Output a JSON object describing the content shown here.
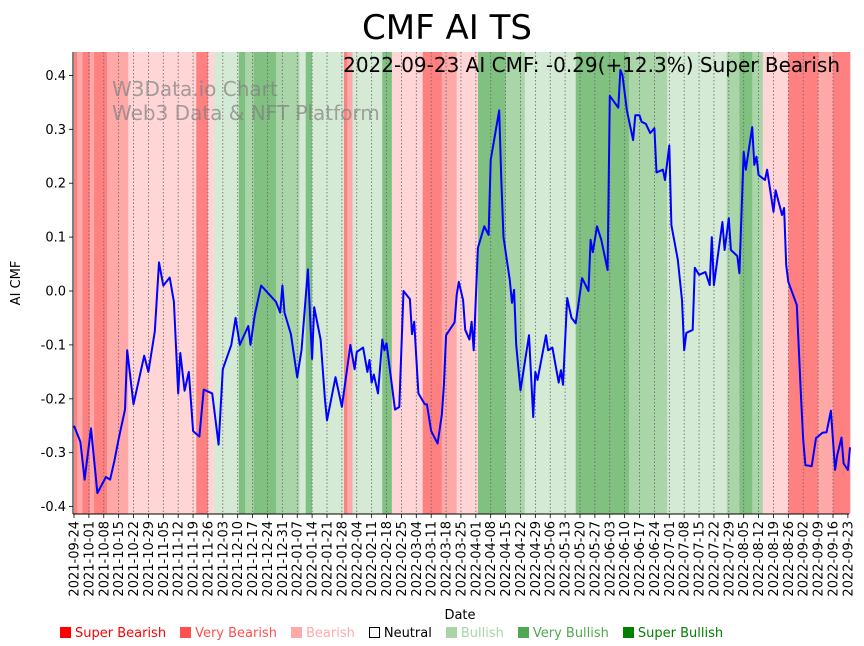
{
  "chart_data": {
    "type": "line",
    "title": "CMF AI TS",
    "annotation": "2022-09-23 AI CMF: -0.29(+12.3%) Super Bearish",
    "watermark": [
      "W3Data.io Chart",
      "Web3 Data & NFT Platform"
    ],
    "xlabel": "Date",
    "ylabel": "AI CMF",
    "x_start_date": "2021-09-24",
    "x_unit": "days since 2021-09-24",
    "xlim": [
      0,
      365
    ],
    "ylim": [
      -0.41,
      0.445
    ],
    "yticks": [
      "-0.4",
      "-0.3",
      "-0.2",
      "-0.1",
      "0.0",
      "0.1",
      "0.2",
      "0.3",
      "0.4"
    ],
    "ytick_values": [
      -0.4,
      -0.3,
      -0.2,
      -0.1,
      0.0,
      0.1,
      0.2,
      0.3,
      0.4
    ],
    "xticks": [
      "2021-09-24",
      "2021-10-01",
      "2021-10-08",
      "2021-10-15",
      "2021-10-22",
      "2021-10-29",
      "2021-11-05",
      "2021-11-12",
      "2021-11-19",
      "2021-11-26",
      "2021-12-03",
      "2021-12-10",
      "2021-12-17",
      "2021-12-24",
      "2021-12-31",
      "2022-01-07",
      "2022-01-14",
      "2022-01-21",
      "2022-01-28",
      "2022-02-04",
      "2022-02-11",
      "2022-02-18",
      "2022-02-25",
      "2022-03-04",
      "2022-03-11",
      "2022-03-18",
      "2022-03-25",
      "2022-04-01",
      "2022-04-08",
      "2022-04-15",
      "2022-04-22",
      "2022-04-29",
      "2022-05-06",
      "2022-05-13",
      "2022-05-20",
      "2022-05-27",
      "2022-06-03",
      "2022-06-10",
      "2022-06-17",
      "2022-06-24",
      "2022-07-01",
      "2022-07-08",
      "2022-07-15",
      "2022-07-22",
      "2022-07-29",
      "2022-08-05",
      "2022-08-12",
      "2022-08-19",
      "2022-08-26",
      "2022-09-02",
      "2022-09-09",
      "2022-09-16",
      "2022-09-23"
    ],
    "grid": "vertical dotted at x ticks",
    "series": [
      {
        "name": "AI CMF",
        "color": "#0000ff",
        "points": [
          [
            0,
            -0.25
          ],
          [
            3,
            -0.28
          ],
          [
            5,
            -0.35
          ],
          [
            8,
            -0.255
          ],
          [
            11,
            -0.375
          ],
          [
            15,
            -0.345
          ],
          [
            17,
            -0.35
          ],
          [
            19,
            -0.315
          ],
          [
            21,
            -0.275
          ],
          [
            24,
            -0.22
          ],
          [
            25,
            -0.11
          ],
          [
            28,
            -0.21
          ],
          [
            33,
            -0.12
          ],
          [
            35,
            -0.15
          ],
          [
            38,
            -0.075
          ],
          [
            40,
            0.053
          ],
          [
            42,
            0.01
          ],
          [
            45,
            0.025
          ],
          [
            47,
            -0.02
          ],
          [
            49,
            -0.19
          ],
          [
            50,
            -0.115
          ],
          [
            52,
            -0.185
          ],
          [
            54,
            -0.15
          ],
          [
            56,
            -0.26
          ],
          [
            59,
            -0.27
          ],
          [
            61,
            -0.183
          ],
          [
            65,
            -0.19
          ],
          [
            68,
            -0.285
          ],
          [
            70,
            -0.145
          ],
          [
            74,
            -0.1
          ],
          [
            76,
            -0.05
          ],
          [
            78,
            -0.1
          ],
          [
            82,
            -0.065
          ],
          [
            83,
            -0.1
          ],
          [
            85,
            -0.045
          ],
          [
            88,
            0.01
          ],
          [
            95,
            -0.02
          ],
          [
            97,
            -0.04
          ],
          [
            98,
            0.01
          ],
          [
            99,
            -0.04
          ],
          [
            102,
            -0.08
          ],
          [
            105,
            -0.16
          ],
          [
            107,
            -0.11
          ],
          [
            110,
            0.04
          ],
          [
            112,
            -0.126
          ],
          [
            113,
            -0.03
          ],
          [
            116,
            -0.09
          ],
          [
            118,
            -0.2
          ],
          [
            119,
            -0.24
          ],
          [
            123,
            -0.16
          ],
          [
            126,
            -0.215
          ],
          [
            130,
            -0.1
          ],
          [
            132,
            -0.145
          ],
          [
            133,
            -0.113
          ],
          [
            136,
            -0.105
          ],
          [
            138,
            -0.15
          ],
          [
            139,
            -0.128
          ],
          [
            140,
            -0.17
          ],
          [
            141,
            -0.155
          ],
          [
            143,
            -0.19
          ],
          [
            145,
            -0.09
          ],
          [
            146,
            -0.11
          ],
          [
            147,
            -0.097
          ],
          [
            151,
            -0.22
          ],
          [
            153,
            -0.215
          ],
          [
            155,
            0.0
          ],
          [
            158,
            -0.015
          ],
          [
            159,
            -0.08
          ],
          [
            160,
            -0.057
          ],
          [
            162,
            -0.19
          ],
          [
            165,
            -0.21
          ],
          [
            166,
            -0.21
          ],
          [
            168,
            -0.26
          ],
          [
            171,
            -0.283
          ],
          [
            173,
            -0.23
          ],
          [
            174,
            -0.175
          ],
          [
            175,
            -0.082
          ],
          [
            179,
            -0.058
          ],
          [
            180,
            -0.007
          ],
          [
            181,
            0.017
          ],
          [
            183,
            -0.017
          ],
          [
            184,
            -0.072
          ],
          [
            186,
            -0.09
          ],
          [
            187,
            -0.057
          ],
          [
            188,
            -0.11
          ],
          [
            190,
            0.08
          ],
          [
            193,
            0.12
          ],
          [
            195,
            0.104
          ],
          [
            196,
            0.243
          ],
          [
            200,
            0.335
          ],
          [
            201,
            0.206
          ],
          [
            202,
            0.1
          ],
          [
            205,
            0.02
          ],
          [
            206,
            -0.022
          ],
          [
            207,
            0.002
          ],
          [
            208,
            -0.1
          ],
          [
            210,
            -0.184
          ],
          [
            214,
            -0.082
          ],
          [
            216,
            -0.234
          ],
          [
            217,
            -0.15
          ],
          [
            218,
            -0.165
          ],
          [
            220,
            -0.124
          ],
          [
            222,
            -0.082
          ],
          [
            223,
            -0.11
          ],
          [
            225,
            -0.105
          ],
          [
            228,
            -0.17
          ],
          [
            229,
            -0.147
          ],
          [
            230,
            -0.174
          ],
          [
            232,
            -0.013
          ],
          [
            234,
            -0.05
          ],
          [
            236,
            -0.06
          ],
          [
            239,
            0.024
          ],
          [
            242,
            0.0
          ],
          [
            243,
            0.095
          ],
          [
            244,
            0.072
          ],
          [
            246,
            0.12
          ],
          [
            248,
            0.095
          ],
          [
            251,
            0.039
          ],
          [
            252,
            0.362
          ],
          [
            256,
            0.34
          ],
          [
            257,
            0.41
          ],
          [
            258,
            0.4
          ],
          [
            260,
            0.336
          ],
          [
            263,
            0.28
          ],
          [
            264,
            0.326
          ],
          [
            266,
            0.326
          ],
          [
            267,
            0.314
          ],
          [
            269,
            0.31
          ],
          [
            271,
            0.293
          ],
          [
            273,
            0.302
          ],
          [
            274,
            0.22
          ],
          [
            277,
            0.225
          ],
          [
            278,
            0.206
          ],
          [
            280,
            0.27
          ],
          [
            281,
            0.122
          ],
          [
            284,
            0.058
          ],
          [
            286,
            -0.017
          ],
          [
            287,
            -0.11
          ],
          [
            288,
            -0.078
          ],
          [
            291,
            -0.072
          ],
          [
            292,
            0.043
          ],
          [
            294,
            0.03
          ],
          [
            297,
            0.035
          ],
          [
            299,
            0.011
          ],
          [
            300,
            0.1
          ],
          [
            301,
            0.011
          ],
          [
            305,
            0.128
          ],
          [
            306,
            0.076
          ],
          [
            308,
            0.135
          ],
          [
            309,
            0.076
          ],
          [
            312,
            0.065
          ],
          [
            313,
            0.033
          ],
          [
            315,
            0.258
          ],
          [
            316,
            0.225
          ],
          [
            319,
            0.304
          ],
          [
            320,
            0.234
          ],
          [
            321,
            0.249
          ],
          [
            322,
            0.215
          ],
          [
            325,
            0.206
          ],
          [
            326,
            0.225
          ],
          [
            329,
            0.147
          ],
          [
            330,
            0.187
          ],
          [
            333,
            0.141
          ],
          [
            334,
            0.154
          ],
          [
            335,
            0.048
          ],
          [
            336,
            0.017
          ],
          [
            340,
            -0.026
          ],
          [
            342,
            -0.2
          ],
          [
            343,
            -0.276
          ],
          [
            344,
            -0.323
          ],
          [
            347,
            -0.325
          ],
          [
            349,
            -0.273
          ],
          [
            350,
            -0.27
          ],
          [
            352,
            -0.263
          ],
          [
            354,
            -0.262
          ],
          [
            356,
            -0.222
          ],
          [
            358,
            -0.332
          ],
          [
            359,
            -0.305
          ],
          [
            361,
            -0.272
          ],
          [
            362,
            -0.32
          ],
          [
            364,
            -0.332
          ],
          [
            365,
            -0.29
          ]
        ]
      }
    ],
    "regime_bands": [
      [
        0,
        1.5,
        "super_bearish"
      ],
      [
        1.5,
        4,
        "very_bearish"
      ],
      [
        4,
        7.5,
        "super_bearish"
      ],
      [
        7.5,
        9.5,
        "very_bearish"
      ],
      [
        9.5,
        15.5,
        "super_bearish"
      ],
      [
        15.5,
        25.5,
        "very_bearish"
      ],
      [
        25.5,
        57.5,
        "bearish"
      ],
      [
        57.5,
        63,
        "super_bearish"
      ],
      [
        63,
        66,
        "bearish"
      ],
      [
        66,
        77.5,
        "bullish"
      ],
      [
        77.5,
        80.5,
        "super_bullish"
      ],
      [
        80.5,
        84.5,
        "very_bullish"
      ],
      [
        84.5,
        95,
        "super_bullish"
      ],
      [
        95,
        106,
        "very_bullish"
      ],
      [
        106,
        109,
        "bullish"
      ],
      [
        109,
        112,
        "super_bullish"
      ],
      [
        112,
        127,
        "bullish"
      ],
      [
        127,
        128.5,
        "super_bearish"
      ],
      [
        128.5,
        131,
        "very_bearish"
      ],
      [
        131,
        145,
        "bullish"
      ],
      [
        145,
        149.5,
        "super_bullish"
      ],
      [
        149.5,
        164,
        "bearish"
      ],
      [
        164,
        173,
        "super_bearish"
      ],
      [
        173,
        180,
        "very_bearish"
      ],
      [
        180,
        190,
        "bearish"
      ],
      [
        190,
        203,
        "super_bullish"
      ],
      [
        203,
        212,
        "very_bullish"
      ],
      [
        212,
        236,
        "bullish"
      ],
      [
        236,
        261,
        "super_bullish"
      ],
      [
        261,
        279,
        "very_bullish"
      ],
      [
        279,
        307,
        "bullish"
      ],
      [
        307,
        313,
        "very_bullish"
      ],
      [
        313,
        319,
        "super_bullish"
      ],
      [
        319,
        324,
        "very_bullish"
      ],
      [
        324,
        336,
        "bearish"
      ],
      [
        336,
        350,
        "super_bearish"
      ],
      [
        350,
        357,
        "very_bearish"
      ],
      [
        357,
        365,
        "super_bearish"
      ]
    ],
    "band_colors": {
      "super_bearish": "#ff8080",
      "very_bearish": "#ffa8a8",
      "bearish": "#ffd5d5",
      "neutral": "#ffffff",
      "bullish": "#d5ead5",
      "very_bullish": "#a9d5a9",
      "super_bullish": "#80c080"
    },
    "legend": {
      "placement": "bottom",
      "items": [
        {
          "key": "super_bearish",
          "label": "Super Bearish",
          "color": "#ff0000",
          "text_color": "#ff0000"
        },
        {
          "key": "very_bearish",
          "label": "Very Bearish",
          "color": "#ff5050",
          "text_color": "#ff5050"
        },
        {
          "key": "bearish",
          "label": "Bearish",
          "color": "#ffaaaa",
          "text_color": "#ffaaaa"
        },
        {
          "key": "neutral",
          "label": "Neutral",
          "color": "#ffffff",
          "text_color": "#000000"
        },
        {
          "key": "bullish",
          "label": "Bullish",
          "color": "#a8d5a8",
          "text_color": "#a8d5a8"
        },
        {
          "key": "very_bullish",
          "label": "Very Bullish",
          "color": "#50a850",
          "text_color": "#50a850"
        },
        {
          "key": "super_bullish",
          "label": "Super Bullish",
          "color": "#008000",
          "text_color": "#008000"
        }
      ]
    }
  }
}
